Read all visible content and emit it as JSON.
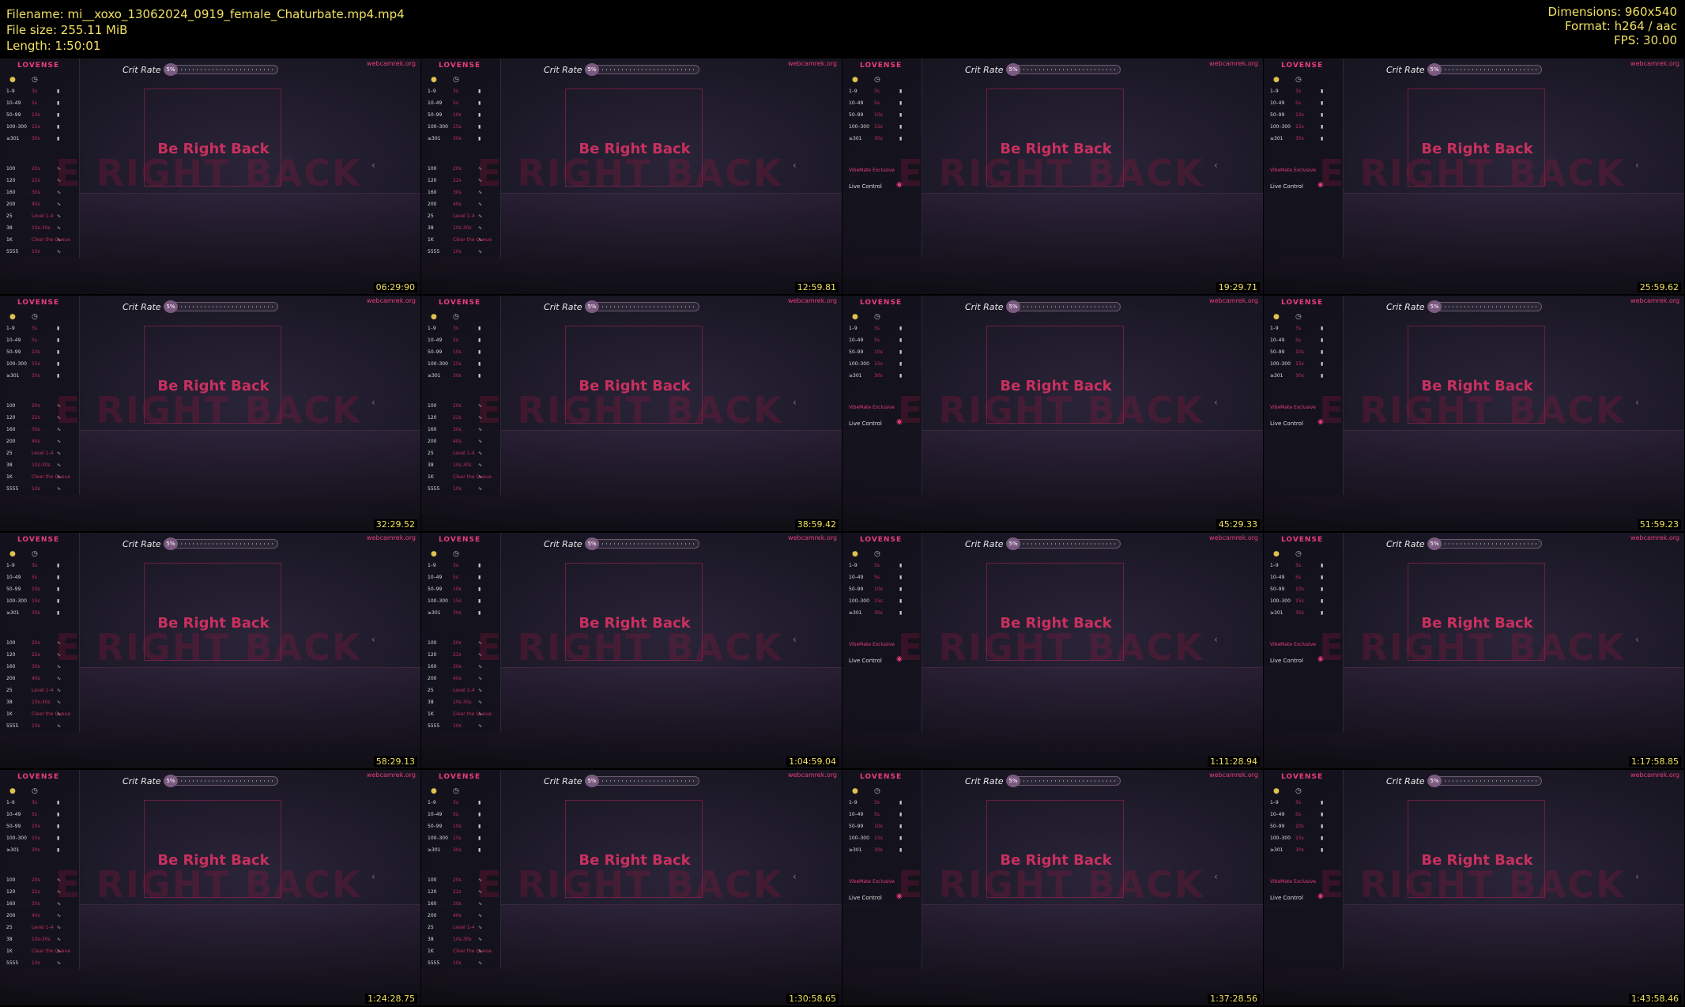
{
  "header": {
    "filename": "Filename: mi__xoxo_13062024_0919_female_Chaturbate.mp4.mp4",
    "filesize": "File size: 255.11 MiB",
    "length": "Length: 1:50:01",
    "dimensions": "Dimensions: 960x540",
    "format": "Format: h264 / aac",
    "fps": "FPS: 30.00"
  },
  "overlay": {
    "brand": "LOVENSE",
    "crit_label": "Crit Rate",
    "crit_pct": "5%",
    "site": "webcamrek.org",
    "brb": "Be Right Back",
    "brb_big": "E RIGHT BACK",
    "exclusive": "VibeMate Exclusive",
    "live_control": "Live Control",
    "tip_rows": [
      {
        "amt": "1–9",
        "dur": "3s"
      },
      {
        "amt": "10–49",
        "dur": "5s"
      },
      {
        "amt": "50–99",
        "dur": "10s"
      },
      {
        "amt": "100–300",
        "dur": "15s"
      },
      {
        "amt": "≥301",
        "dur": "30s"
      }
    ],
    "pattern_rows": [
      {
        "amt": "100",
        "dur": "20s"
      },
      {
        "amt": "120",
        "dur": "22s"
      },
      {
        "amt": "160",
        "dur": "30s"
      },
      {
        "amt": "200",
        "dur": "40s"
      },
      {
        "amt": "25",
        "dur": "Level 1-4"
      },
      {
        "amt": "38",
        "dur": "10s-30s"
      },
      {
        "amt": "1K",
        "dur": "Clear the Queue"
      },
      {
        "amt": "5555",
        "dur": "10s"
      }
    ]
  },
  "thumbnails": [
    {
      "time": "06:29:90",
      "variant": "full"
    },
    {
      "time": "12:59.81",
      "variant": "full"
    },
    {
      "time": "19:29.71",
      "variant": "live"
    },
    {
      "time": "25:59.62",
      "variant": "live"
    },
    {
      "time": "32:29.52",
      "variant": "full"
    },
    {
      "time": "38:59.42",
      "variant": "full"
    },
    {
      "time": "45:29.33",
      "variant": "live"
    },
    {
      "time": "51:59.23",
      "variant": "live"
    },
    {
      "time": "58:29.13",
      "variant": "full"
    },
    {
      "time": "1:04:59.04",
      "variant": "full"
    },
    {
      "time": "1:11:28.94",
      "variant": "live"
    },
    {
      "time": "1:17:58.85",
      "variant": "live"
    },
    {
      "time": "1:24:28.75",
      "variant": "full"
    },
    {
      "time": "1:30:58.65",
      "variant": "full"
    },
    {
      "time": "1:37:28.56",
      "variant": "live"
    },
    {
      "time": "1:43:58.46",
      "variant": "live"
    }
  ]
}
